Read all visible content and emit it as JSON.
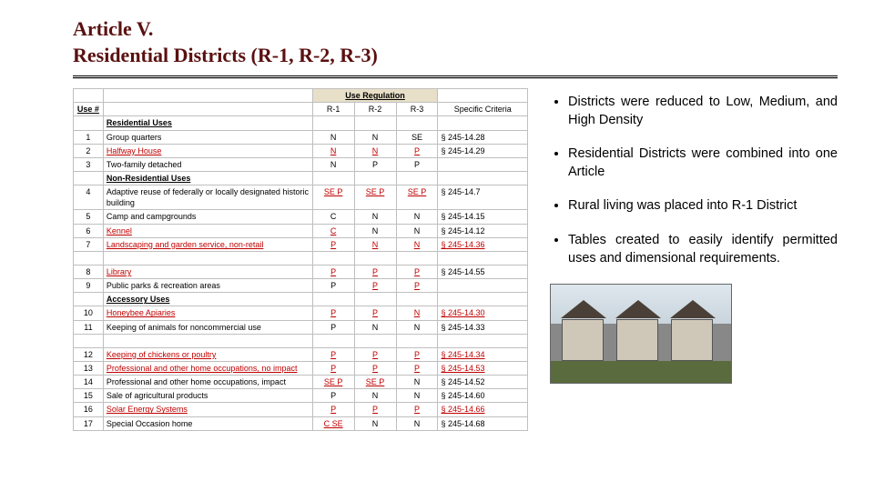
{
  "title_line1": "Article V.",
  "title_line2": "Residential Districts (R-1, R-2, R-3)",
  "colors": {
    "title": "#5a1010",
    "highlight_red": "#c00000",
    "header_band_bg": "#e8dfc8",
    "border": "#bfbfbf"
  },
  "table": {
    "band_label": "Use Regulation",
    "headers": {
      "use_num": "Use #",
      "desc": "",
      "r1": "R-1",
      "r2": "R-2",
      "r3": "R-3",
      "spec": "Specific Criteria"
    },
    "rows": [
      {
        "type": "section",
        "label": "Residential Uses"
      },
      {
        "num": "1",
        "desc": "Group quarters",
        "r1": "N",
        "r2": "N",
        "r3": "SE",
        "spec": "§ 245-14.28"
      },
      {
        "num": "2",
        "desc": "Halfway House",
        "desc_red": true,
        "r1": "N",
        "r1_red": true,
        "r2": "N",
        "r2_red": true,
        "r3": "P",
        "r3_red": true,
        "spec": "§ 245-14.29"
      },
      {
        "num": "3",
        "desc": "Two-family detached",
        "r1": "N",
        "r2": "P",
        "r3": "P"
      },
      {
        "type": "section",
        "label": "Non-Residential Uses"
      },
      {
        "num": "4",
        "desc": "Adaptive reuse of federally or locally designated historic building",
        "r1": "SE P",
        "r1_red": true,
        "r2": "SE P",
        "r2_red": true,
        "r3": "SE P",
        "r3_red": true,
        "spec": "§ 245-14.7"
      },
      {
        "num": "5",
        "desc": "Camp and campgrounds",
        "r1": "C",
        "r2": "N",
        "r3": "N",
        "spec": "§ 245-14.15"
      },
      {
        "num": "6",
        "desc": "Kennel",
        "desc_red": true,
        "r1": "C",
        "r1_red": true,
        "r2": "N",
        "r3": "N",
        "spec": "§ 245-14.12"
      },
      {
        "num": "7",
        "desc": "Landscaping and garden service, non-retail",
        "desc_red": true,
        "r1": "P",
        "r1_red": true,
        "r2": "N",
        "r2_red": true,
        "r3": "N",
        "r3_red": true,
        "spec": "§ 245-14.36",
        "spec_red": true
      },
      {
        "type": "gap"
      },
      {
        "num": "8",
        "desc": "Library",
        "desc_red": true,
        "r1": "P",
        "r1_red": true,
        "r2": "P",
        "r2_red": true,
        "r3": "P",
        "r3_red": true,
        "spec": "§ 245-14.55"
      },
      {
        "num": "9",
        "desc": "Public parks & recreation areas",
        "r1": "P",
        "r2": "P",
        "r2_red": true,
        "r3": "P",
        "r3_red": true
      },
      {
        "type": "section",
        "label": "Accessory Uses"
      },
      {
        "num": "10",
        "desc": "Honeybee Apiaries",
        "desc_red": true,
        "r1": "P",
        "r1_red": true,
        "r2": "P",
        "r2_red": true,
        "r3": "N",
        "r3_red": true,
        "spec": "§ 245-14.30",
        "spec_red": true
      },
      {
        "num": "11",
        "desc": "Keeping of animals for noncommercial use",
        "r1": "P",
        "r2": "N",
        "r3": "N",
        "spec": "§ 245-14.33"
      },
      {
        "type": "gap"
      },
      {
        "num": "12",
        "desc": "Keeping of chickens or poultry",
        "desc_red": true,
        "r1": "P",
        "r1_red": true,
        "r2": "P",
        "r2_red": true,
        "r3": "P",
        "r3_red": true,
        "spec": "§ 245-14.34",
        "spec_red": true
      },
      {
        "num": "13",
        "desc": "Professional and other home occupations, no impact",
        "desc_red": true,
        "r1": "P",
        "r1_red": true,
        "r2": "P",
        "r2_red": true,
        "r3": "P",
        "r3_red": true,
        "spec": "§ 245-14.53",
        "spec_red": true
      },
      {
        "num": "14",
        "desc": "Professional and other home occupations, impact",
        "r1": "SE P",
        "r1_red": true,
        "r2": "SE P",
        "r2_red": true,
        "r3": "N",
        "spec": "§ 245-14.52"
      },
      {
        "num": "15",
        "desc": "Sale of agricultural products",
        "r1": "P",
        "r2": "N",
        "r3": "N",
        "spec": "§ 245-14.60"
      },
      {
        "num": "16",
        "desc": "Solar Energy Systems",
        "desc_red": true,
        "r1": "P",
        "r1_red": true,
        "r2": "P",
        "r2_red": true,
        "r3": "P",
        "r3_red": true,
        "spec": "§ 245-14.66",
        "spec_red": true
      },
      {
        "num": "17",
        "desc": "Special Occasion home",
        "r1": "C SE",
        "r1_red": true,
        "r2": "N",
        "r3": "N",
        "spec": "§ 245-14.68"
      }
    ]
  },
  "bullets": [
    "Districts were reduced to Low, Medium, and High Density",
    "Residential Districts were combined into one Article",
    "Rural living was placed into R-1 District",
    "Tables created to easily identify permitted uses and dimensional requirements."
  ]
}
